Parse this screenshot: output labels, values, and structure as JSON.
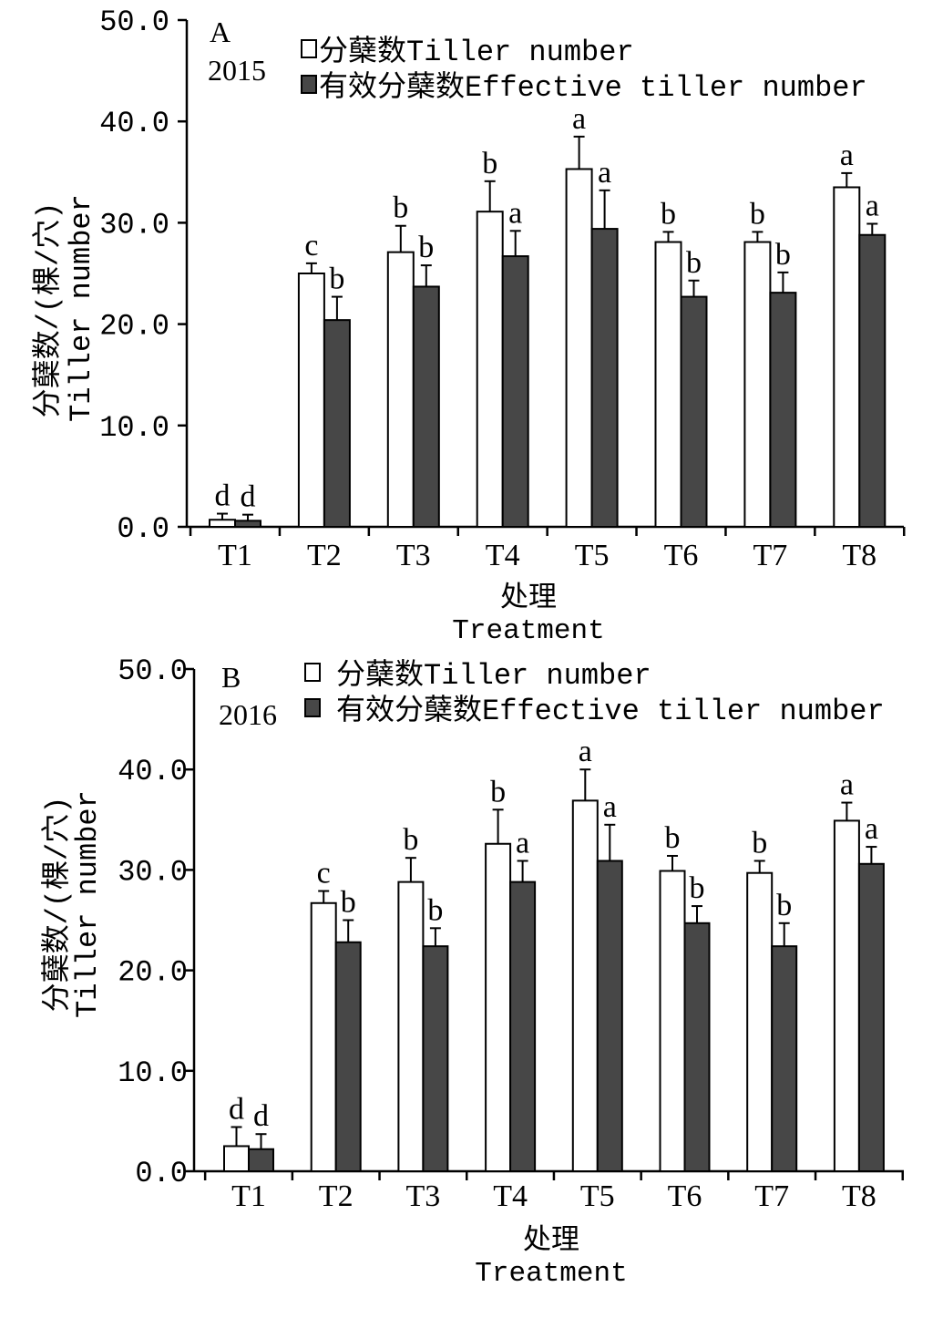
{
  "chart_data": [
    {
      "type": "bar",
      "panel": "A",
      "year": "2015",
      "categories": [
        "T1",
        "T2",
        "T3",
        "T4",
        "T5",
        "T6",
        "T7",
        "T8"
      ],
      "series": [
        {
          "name": "分蘖数Tiller number",
          "color": "#ffffff",
          "values": [
            0.7,
            25.0,
            27.1,
            31.1,
            35.3,
            28.1,
            28.1,
            33.5
          ],
          "errors": [
            0.6,
            1.0,
            2.6,
            3.0,
            3.2,
            1.0,
            1.0,
            1.4
          ],
          "letters": [
            "d",
            "c",
            "b",
            "b",
            "a",
            "b",
            "b",
            "a"
          ]
        },
        {
          "name": "有效分蘖数Effective tiller number",
          "color": "#474747",
          "values": [
            0.6,
            20.4,
            23.7,
            26.7,
            29.4,
            22.7,
            23.1,
            28.8
          ],
          "errors": [
            0.6,
            2.3,
            2.1,
            2.5,
            3.8,
            1.6,
            2.0,
            1.1
          ],
          "letters": [
            "d",
            "b",
            "b",
            "a",
            "a",
            "b",
            "b",
            "a"
          ]
        }
      ],
      "xlabel": {
        "cn": "处理",
        "en": "Treatment"
      },
      "ylabel": {
        "cn": "分蘖数/(棵/穴)",
        "en": "Tiller number"
      },
      "ylim": [
        0,
        50
      ],
      "yticks": [
        0,
        10,
        20,
        30,
        40,
        50
      ],
      "ytick_labels": [
        "0.0",
        "10.0",
        "20.0",
        "30.0",
        "40.0",
        "50.0"
      ],
      "grid": false,
      "legend": "top"
    },
    {
      "type": "bar",
      "panel": "B",
      "year": "2016",
      "categories": [
        "T1",
        "T2",
        "T3",
        "T4",
        "T5",
        "T6",
        "T7",
        "T8"
      ],
      "series": [
        {
          "name": "分蘖数Tiller number",
          "color": "#ffffff",
          "values": [
            2.5,
            26.7,
            28.8,
            32.6,
            36.9,
            29.9,
            29.7,
            34.9
          ],
          "errors": [
            1.9,
            1.2,
            2.4,
            3.4,
            3.1,
            1.5,
            1.2,
            1.8
          ],
          "letters": [
            "d",
            "c",
            "b",
            "b",
            "a",
            "b",
            "b",
            "a"
          ]
        },
        {
          "name": "有效分蘖数Effective tiller number",
          "color": "#474747",
          "values": [
            2.2,
            22.8,
            22.4,
            28.8,
            30.9,
            24.7,
            22.4,
            30.6
          ],
          "errors": [
            1.5,
            2.2,
            1.8,
            2.1,
            3.6,
            1.7,
            2.3,
            1.7
          ],
          "letters": [
            "d",
            "b",
            "b",
            "a",
            "a",
            "b",
            "b",
            "a"
          ]
        }
      ],
      "xlabel": {
        "cn": "处理",
        "en": "Treatment"
      },
      "ylabel": {
        "cn": "分蘖数/(棵/穴)",
        "en": "Tiller number"
      },
      "ylim": [
        0,
        50
      ],
      "yticks": [
        0,
        10,
        20,
        30,
        40,
        50
      ],
      "ytick_labels": [
        "0.0",
        "10.0",
        "20.0",
        "30.0",
        "40.0",
        "50.0"
      ],
      "grid": false,
      "legend": "top"
    }
  ]
}
